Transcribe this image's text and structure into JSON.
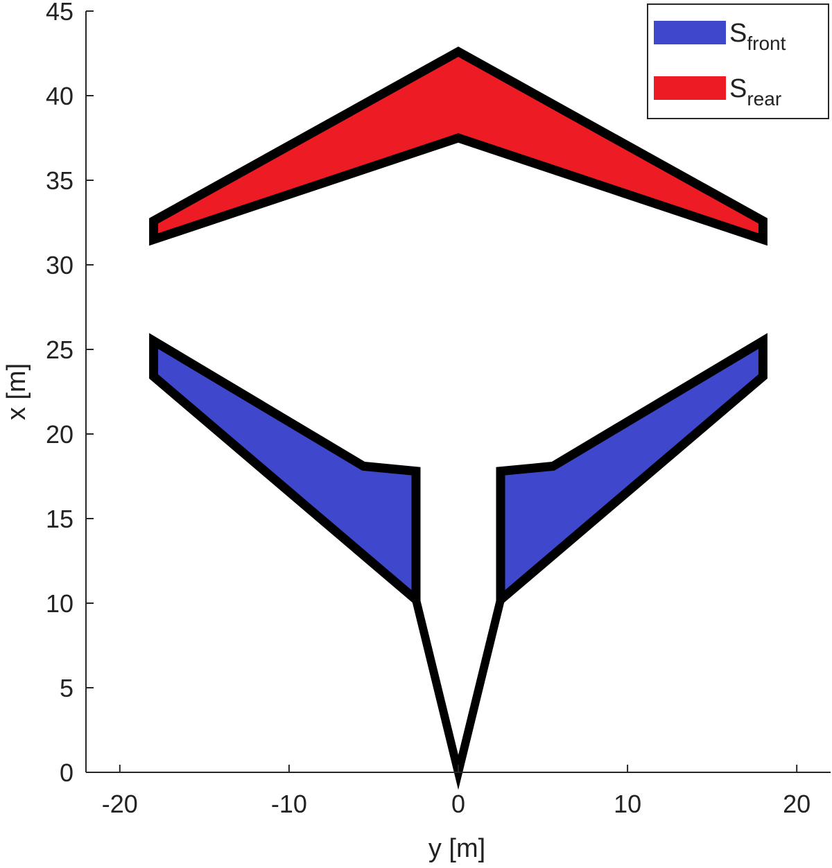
{
  "chart_data": {
    "type": "area",
    "title": "",
    "xlabel": "y [m]",
    "ylabel": "x [m]",
    "xlim": [
      -22,
      22
    ],
    "ylim": [
      0,
      45
    ],
    "x_ticks": [
      -20,
      -10,
      0,
      10,
      20
    ],
    "y_ticks": [
      0,
      5,
      10,
      15,
      20,
      25,
      30,
      35,
      40,
      45
    ],
    "x_tick_labels": [
      "-20",
      "-10",
      "0",
      "10",
      "20"
    ],
    "y_tick_labels": [
      "0",
      "5",
      "10",
      "15",
      "20",
      "25",
      "30",
      "35",
      "40",
      "45"
    ],
    "grid": false,
    "legend_position": "top-right",
    "legend": [
      {
        "base": "S",
        "sub": "front",
        "color": "#3f48cc"
      },
      {
        "base": "S",
        "sub": "rear",
        "color": "#ed1c24"
      }
    ],
    "series": [
      {
        "color": "#ed1c24",
        "shapes": [
          [
            [
              -18,
              32.6
            ],
            [
              0,
              42.6
            ],
            [
              18,
              32.6
            ],
            [
              18,
              31.5
            ],
            [
              0,
              37.5
            ],
            [
              -18,
              31.5
            ]
          ]
        ]
      },
      {
        "color": "#3f48cc",
        "shapes": [
          [
            [
              -18,
              25.5
            ],
            [
              -5.6,
              18.1
            ],
            [
              -2.5,
              17.8
            ],
            [
              -2.5,
              10.2
            ],
            [
              -18,
              23.4
            ]
          ],
          [
            [
              18,
              25.5
            ],
            [
              5.6,
              18.1
            ],
            [
              2.5,
              17.8
            ],
            [
              2.5,
              10.2
            ],
            [
              18,
              23.4
            ]
          ]
        ]
      }
    ],
    "outline": [
      [
        [
          -2.5,
          10.2
        ],
        [
          0,
          0
        ],
        [
          2.5,
          10.2
        ]
      ]
    ],
    "colors": {
      "front": "#3f48cc",
      "rear": "#ed1c24",
      "outline": "#000000",
      "axis": "#262626"
    }
  }
}
